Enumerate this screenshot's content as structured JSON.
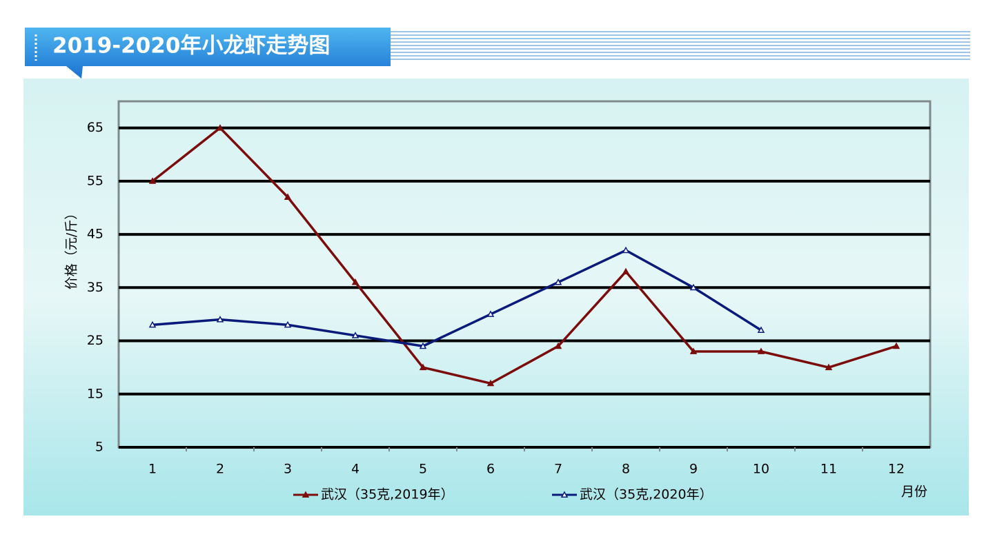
{
  "chart_data": {
    "type": "line",
    "title": "2019-2020年小龙虾走势图",
    "y_label": "价格（元/斤）",
    "x_label": "月份",
    "categories": [
      "1",
      "2",
      "3",
      "4",
      "5",
      "6",
      "7",
      "8",
      "9",
      "10",
      "11",
      "12"
    ],
    "series": [
      {
        "name": "武汉（35克,2019年）",
        "color": "#7b0c0c",
        "values": [
          55,
          65,
          52,
          36,
          20,
          17,
          24,
          38,
          23,
          23,
          20,
          24
        ]
      },
      {
        "name": "武汉（35克,2020年）",
        "color": "#0a1a7a",
        "values": [
          28,
          29,
          28,
          26,
          24,
          30,
          36,
          42,
          35,
          27,
          null,
          null
        ]
      }
    ],
    "ylim": [
      5,
      70
    ],
    "yticks": [
      5,
      15,
      25,
      35,
      45,
      55,
      65
    ],
    "grid": true
  }
}
